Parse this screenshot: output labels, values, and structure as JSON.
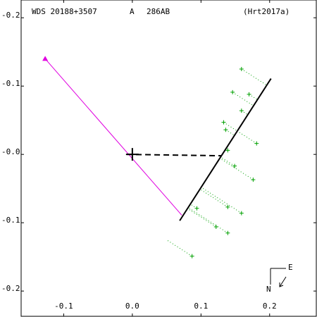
{
  "chart_data": {
    "type": "scatter",
    "header": [
      "WDS 20188+3507",
      "A",
      "286AB",
      "(Hrt2017a)"
    ],
    "xlim": [
      -0.162,
      0.269
    ],
    "ylim": [
      -0.238,
      0.226
    ],
    "xticks": [
      -0.1,
      {
        "value": 0,
        "label": "0.0"
      },
      0.1,
      0.2
    ],
    "yticks": [
      {
        "value": 0.2,
        "label": "-0.2"
      },
      {
        "value": 0.1,
        "label": "-0.1"
      },
      {
        "value": 0,
        "label": "-0.0"
      },
      -0.1,
      -0.2
    ],
    "points": {
      "color": "#00a000",
      "x": [
        0.159,
        0.146,
        0.17,
        0.159,
        0.133,
        0.136,
        0.181,
        0.139,
        0.149,
        0.176,
        0.094,
        0.139,
        0.159,
        0.122,
        0.139,
        0.087
      ],
      "y": [
        0.125,
        0.091,
        0.088,
        0.064,
        0.047,
        0.036,
        0.016,
        0.006,
        -0.017,
        -0.037,
        -0.079,
        -0.077,
        -0.086,
        -0.106,
        -0.115,
        -0.149
      ]
    },
    "fit_line": {
      "color": "#000000",
      "x": [
        0.069,
        0.202
      ],
      "y": [
        -0.097,
        0.111
      ]
    },
    "motion_line": {
      "color": "#e000e0",
      "x": [
        -0.127,
        0.072
      ],
      "y": [
        0.14,
        -0.089
      ]
    },
    "node_line": {
      "color": "#000000",
      "x": [
        -0.008,
        0.13
      ],
      "y": [
        0.0,
        -0.002
      ]
    },
    "primary": {
      "x": 0,
      "y": 0
    },
    "compass": [
      "N",
      "E"
    ]
  }
}
